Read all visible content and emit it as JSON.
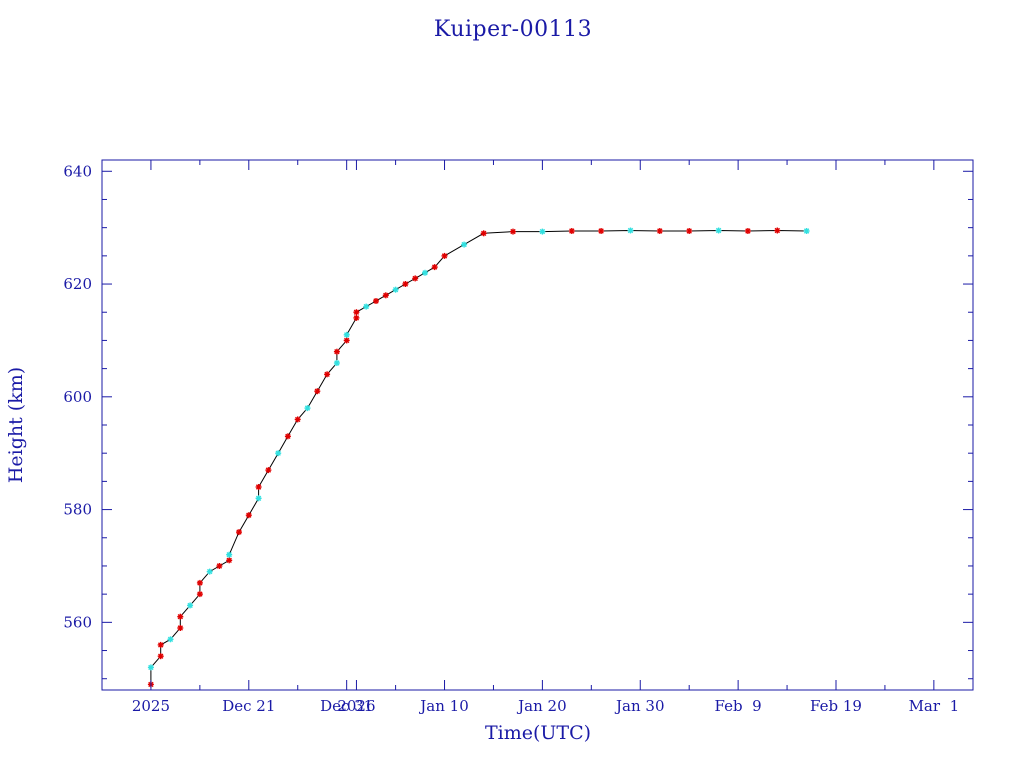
{
  "colors": {
    "axis": "#1a1aa6",
    "line": "#000000",
    "marker_primary": "#e00000",
    "marker_secondary": "#33e0e0",
    "background": "#ffffff"
  },
  "chart_data": {
    "type": "line",
    "title": "Kuiper-00113",
    "xlabel": "Time(UTC)",
    "ylabel": "Height (km)",
    "xlim": [
      "2025-12-06",
      "2026-03-05"
    ],
    "ylim": [
      548,
      642
    ],
    "grid": false,
    "x_ticks": [
      {
        "date": "2025-12-11",
        "label": "2025"
      },
      {
        "date": "2025-12-21",
        "label": "Dec 21"
      },
      {
        "date": "2025-12-31",
        "label": "Dec 31"
      },
      {
        "date": "2026-01-01",
        "label": "2026"
      },
      {
        "date": "2026-01-10",
        "label": "Jan 10"
      },
      {
        "date": "2026-01-20",
        "label": "Jan 20"
      },
      {
        "date": "2026-01-30",
        "label": "Jan 30"
      },
      {
        "date": "2026-02-09",
        "label": "Feb  9"
      },
      {
        "date": "2026-02-19",
        "label": "Feb 19"
      },
      {
        "date": "2026-03-01",
        "label": "Mar  1"
      }
    ],
    "y_ticks": [
      560,
      580,
      600,
      620,
      640
    ],
    "series": [
      {
        "x": [
          "2025-12-11",
          "2025-12-11",
          "2025-12-12",
          "2025-12-12",
          "2025-12-13",
          "2025-12-14",
          "2025-12-14",
          "2025-12-15",
          "2025-12-16",
          "2025-12-16",
          "2025-12-17",
          "2025-12-18",
          "2025-12-19",
          "2025-12-19",
          "2025-12-20",
          "2025-12-21",
          "2025-12-22",
          "2025-12-22",
          "2025-12-23",
          "2025-12-24",
          "2025-12-25",
          "2025-12-26",
          "2025-12-27",
          "2025-12-28",
          "2025-12-29",
          "2025-12-30",
          "2025-12-30",
          "2025-12-31",
          "2025-12-31",
          "2026-01-01",
          "2026-01-01",
          "2026-01-02",
          "2026-01-03",
          "2026-01-04",
          "2026-01-05",
          "2026-01-06",
          "2026-01-07",
          "2026-01-08",
          "2026-01-09",
          "2026-01-10",
          "2026-01-12",
          "2026-01-14",
          "2026-01-17",
          "2026-01-20",
          "2026-01-23",
          "2026-01-26",
          "2026-01-29",
          "2026-02-01",
          "2026-02-04",
          "2026-02-07",
          "2026-02-10",
          "2026-02-13",
          "2026-02-16"
        ],
        "y": [
          549,
          552,
          554,
          556,
          557,
          559,
          561,
          563,
          565,
          567,
          569,
          570,
          571,
          572,
          576,
          579,
          582,
          584,
          587,
          590,
          593,
          596,
          598,
          601,
          604,
          606,
          608,
          610,
          611,
          614,
          615,
          616,
          617,
          618,
          619,
          620,
          621,
          622,
          623,
          625,
          627,
          629,
          629.3,
          629.3,
          629.4,
          629.4,
          629.5,
          629.4,
          629.4,
          629.5,
          629.4,
          629.5,
          629.4
        ]
      }
    ]
  }
}
